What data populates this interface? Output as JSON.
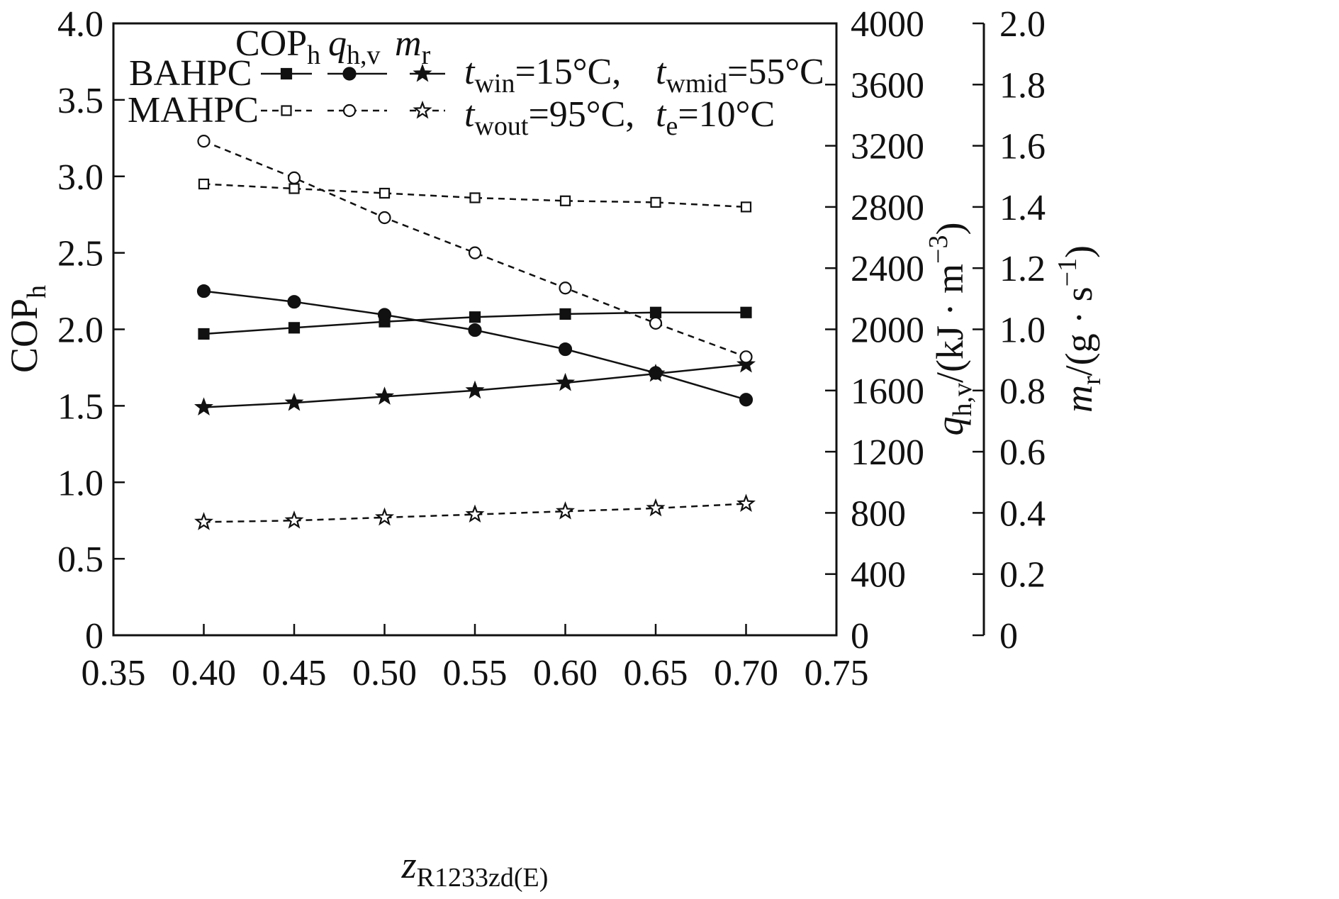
{
  "chart_data": {
    "type": "line",
    "xlabel": {
      "main": "z",
      "sub": "R1233zd(E)"
    },
    "x_ticks": [
      "0.35",
      "0.40",
      "0.45",
      "0.50",
      "0.55",
      "0.60",
      "0.65",
      "0.70",
      "0.75"
    ],
    "xlim": [
      0.35,
      0.75
    ],
    "left_axis": {
      "label": {
        "main": "COP",
        "sub": "h"
      },
      "ylim": [
        0,
        4.0
      ],
      "ticks": [
        "0",
        "0.5",
        "1.0",
        "1.5",
        "2.0",
        "2.5",
        "3.0",
        "3.5",
        "4.0"
      ]
    },
    "right_axis_1": {
      "label": {
        "main": "q",
        "sub": "h,v",
        "rest": "/(kJ · m",
        "sup": "−3",
        "close": ")"
      },
      "ylim": [
        0,
        4000
      ],
      "ticks": [
        "0",
        "400",
        "800",
        "1200",
        "1600",
        "2000",
        "2400",
        "2800",
        "3200",
        "3600",
        "4000"
      ]
    },
    "right_axis_2": {
      "label": {
        "main": "m",
        "sub": "r",
        "rest": "/(g · s",
        "sup": "−1",
        "close": ")"
      },
      "ylim": [
        0,
        2.0
      ],
      "ticks": [
        "0",
        "0.2",
        "0.4",
        "0.6",
        "0.8",
        "1.0",
        "1.2",
        "1.4",
        "1.6",
        "1.8",
        "2.0"
      ]
    },
    "x": [
      0.4,
      0.45,
      0.5,
      0.55,
      0.6,
      0.65,
      0.7
    ],
    "series": [
      {
        "name": "BAHPC COP_h",
        "axis": "left",
        "marker": "square-filled",
        "line": "solid",
        "values": [
          1.97,
          2.01,
          2.05,
          2.08,
          2.1,
          2.11,
          2.11
        ]
      },
      {
        "name": "BAHPC q_h,v",
        "axis": "right1",
        "marker": "circle-filled",
        "line": "solid",
        "values": [
          2250,
          2180,
          2095,
          1995,
          1870,
          1715,
          1540
        ]
      },
      {
        "name": "BAHPC m_r",
        "axis": "right2",
        "marker": "star-filled",
        "line": "solid",
        "values": [
          0.745,
          0.76,
          0.78,
          0.8,
          0.825,
          0.855,
          0.885
        ]
      },
      {
        "name": "MAHPC COP_h",
        "axis": "left",
        "marker": "square-open",
        "line": "dashed",
        "values": [
          2.95,
          2.92,
          2.89,
          2.86,
          2.84,
          2.83,
          2.8
        ]
      },
      {
        "name": "MAHPC q_h,v",
        "axis": "right1",
        "marker": "circle-open",
        "line": "dashed",
        "values": [
          3230,
          2990,
          2730,
          2500,
          2270,
          2040,
          1820
        ]
      },
      {
        "name": "MAHPC m_r",
        "axis": "right2",
        "marker": "star-open",
        "line": "dashed",
        "values": [
          0.37,
          0.375,
          0.385,
          0.395,
          0.405,
          0.415,
          0.43
        ]
      }
    ],
    "legend": {
      "headers": [
        {
          "main": "COP",
          "sub": "h"
        },
        {
          "main": "q",
          "sub": "h,v"
        },
        {
          "main": "m",
          "sub": "r"
        }
      ],
      "row1": "BAHPC",
      "row2": "MAHPC"
    },
    "annotations": [
      {
        "main": "t",
        "sub": "win",
        "rest": "=15°C,"
      },
      {
        "main": "t",
        "sub": "wmid",
        "rest": "=55°C"
      },
      {
        "main": "t",
        "sub": "wout",
        "rest": "=95°C,"
      },
      {
        "main": "t",
        "sub": "e",
        "rest": "=10°C"
      }
    ]
  }
}
